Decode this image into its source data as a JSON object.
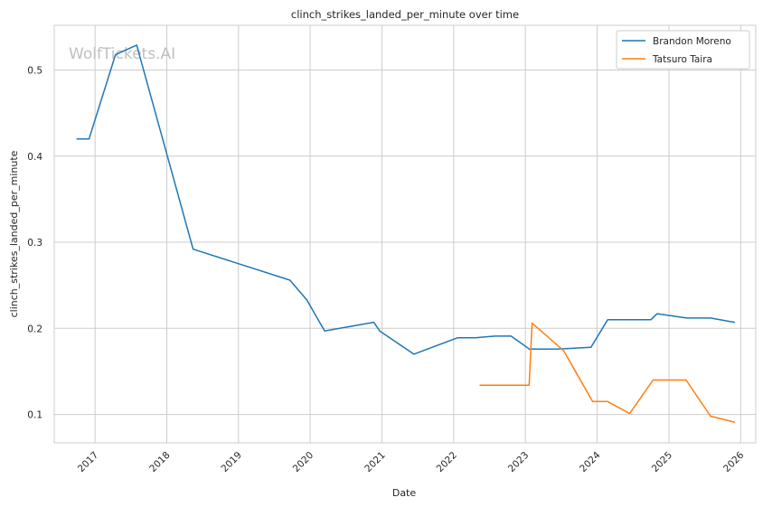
{
  "chart_data": {
    "type": "line",
    "title": "clinch_strikes_landed_per_minute over time",
    "xlabel": "Date",
    "ylabel": "clinch_strikes_landed_per_minute",
    "watermark": "WolfTickets.AI",
    "x_ticks": [
      "2017",
      "2018",
      "2019",
      "2020",
      "2021",
      "2022",
      "2023",
      "2024",
      "2025",
      "2026"
    ],
    "y_ticks": [
      0.1,
      0.2,
      0.3,
      0.4,
      0.5
    ],
    "xlim": [
      "2016-06-07",
      "2026-03-19"
    ],
    "ylim": [
      0.067,
      0.552
    ],
    "grid": true,
    "legend_position": "top-right",
    "series": [
      {
        "name": "Brandon Moreno",
        "color": "#1f77b4",
        "points": [
          [
            "2016-10-01",
            0.42
          ],
          [
            "2016-12-01",
            0.42
          ],
          [
            "2017-04-15",
            0.518
          ],
          [
            "2017-08-01",
            0.529
          ],
          [
            "2018-05-15",
            0.292
          ],
          [
            "2019-09-20",
            0.256
          ],
          [
            "2019-12-15",
            0.233
          ],
          [
            "2020-03-15",
            0.197
          ],
          [
            "2020-11-20",
            0.207
          ],
          [
            "2020-12-20",
            0.197
          ],
          [
            "2021-06-12",
            0.17
          ],
          [
            "2022-01-20",
            0.189
          ],
          [
            "2022-04-20",
            0.189
          ],
          [
            "2022-07-30",
            0.191
          ],
          [
            "2022-10-20",
            0.191
          ],
          [
            "2023-01-21",
            0.176
          ],
          [
            "2023-06-10",
            0.176
          ],
          [
            "2023-12-01",
            0.178
          ],
          [
            "2024-02-24",
            0.21
          ],
          [
            "2024-10-01",
            0.21
          ],
          [
            "2024-11-02",
            0.217
          ],
          [
            "2025-04-01",
            0.212
          ],
          [
            "2025-08-01",
            0.212
          ],
          [
            "2025-11-30",
            0.207
          ]
        ]
      },
      {
        "name": "Tatsuro Taira",
        "color": "#ff7f0e",
        "points": [
          [
            "2022-05-15",
            0.134
          ],
          [
            "2023-01-20",
            0.134
          ],
          [
            "2023-02-04",
            0.206
          ],
          [
            "2023-07-15",
            0.174
          ],
          [
            "2023-12-09",
            0.115
          ],
          [
            "2024-02-24",
            0.115
          ],
          [
            "2024-06-15",
            0.101
          ],
          [
            "2024-10-12",
            0.14
          ],
          [
            "2025-03-29",
            0.14
          ],
          [
            "2025-08-01",
            0.098
          ],
          [
            "2025-11-30",
            0.091
          ]
        ]
      }
    ]
  }
}
